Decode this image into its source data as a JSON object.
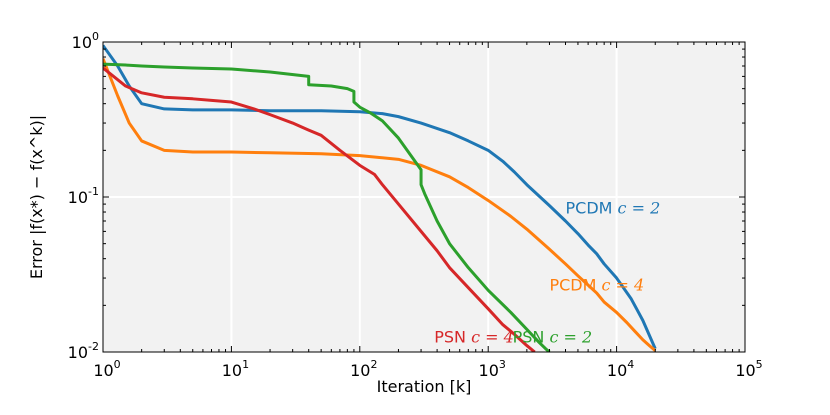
{
  "chart_data": {
    "type": "line",
    "title": "",
    "xlabel": "Iteration [k]",
    "ylabel": "Error |f(x*) − f(x^k)|",
    "xscale": "log",
    "yscale": "log",
    "xlim": [
      1,
      100000
    ],
    "ylim": [
      0.01,
      1
    ],
    "grid": true,
    "background": "#f2f2f2",
    "grid_color": "#ffffff",
    "x_ticks": [
      {
        "value": 1,
        "base": "10",
        "exp": "0"
      },
      {
        "value": 10,
        "base": "10",
        "exp": "1"
      },
      {
        "value": 100,
        "base": "10",
        "exp": "2"
      },
      {
        "value": 1000,
        "base": "10",
        "exp": "3"
      },
      {
        "value": 10000,
        "base": "10",
        "exp": "4"
      },
      {
        "value": 100000,
        "base": "10",
        "exp": "5"
      }
    ],
    "y_ticks": [
      {
        "value": 0.01,
        "base": "10",
        "exp": "-2"
      },
      {
        "value": 0.1,
        "base": "10",
        "exp": "-1"
      },
      {
        "value": 1,
        "base": "10",
        "exp": "0"
      }
    ],
    "series": [
      {
        "name": "PCDM",
        "param": "c = 2",
        "color": "#1f77b4",
        "label_anchor": {
          "x": 4000,
          "y": 0.078
        },
        "x": [
          1,
          1.3,
          1.6,
          2,
          3,
          5,
          10,
          20,
          50,
          100,
          150,
          200,
          300,
          500,
          700,
          1000,
          1300,
          1600,
          2000,
          3000,
          4000,
          5000,
          6000,
          7000,
          8000,
          10000,
          13000,
          16000,
          20000
        ],
        "y": [
          0.95,
          0.7,
          0.52,
          0.4,
          0.37,
          0.365,
          0.365,
          0.36,
          0.36,
          0.355,
          0.345,
          0.33,
          0.3,
          0.26,
          0.23,
          0.2,
          0.17,
          0.145,
          0.12,
          0.088,
          0.07,
          0.058,
          0.049,
          0.043,
          0.037,
          0.03,
          0.022,
          0.016,
          0.0105
        ]
      },
      {
        "name": "PCDM",
        "param": "c = 4",
        "color": "#ff7f0e",
        "label_anchor": {
          "x": 3000,
          "y": 0.025
        },
        "x": [
          1,
          1.3,
          1.6,
          2,
          3,
          5,
          10,
          20,
          50,
          100,
          200,
          300,
          500,
          700,
          1000,
          1500,
          2000,
          3000,
          4000,
          5000,
          6000,
          7000,
          8000,
          10000,
          12000,
          14000,
          16000,
          18000,
          20000
        ],
        "y": [
          0.78,
          0.45,
          0.3,
          0.23,
          0.2,
          0.195,
          0.195,
          0.193,
          0.19,
          0.185,
          0.175,
          0.16,
          0.135,
          0.115,
          0.095,
          0.075,
          0.062,
          0.046,
          0.037,
          0.031,
          0.027,
          0.024,
          0.021,
          0.018,
          0.0155,
          0.0135,
          0.012,
          0.011,
          0.0102
        ]
      },
      {
        "name": "PSN",
        "param": "c = 2",
        "color": "#2ca02c",
        "label_anchor": {
          "x": 1550,
          "y": 0.0115
        },
        "x": [
          1,
          1.5,
          2,
          3,
          5,
          10,
          20,
          40,
          40,
          60,
          80,
          90,
          90,
          100,
          120,
          150,
          200,
          300,
          300,
          320,
          400,
          500,
          700,
          1000,
          1500,
          2000,
          2500,
          2800,
          3000
        ],
        "y": [
          0.72,
          0.71,
          0.7,
          0.69,
          0.68,
          0.67,
          0.64,
          0.6,
          0.53,
          0.52,
          0.5,
          0.48,
          0.41,
          0.38,
          0.35,
          0.31,
          0.24,
          0.15,
          0.12,
          0.105,
          0.07,
          0.05,
          0.035,
          0.025,
          0.018,
          0.014,
          0.0115,
          0.0105,
          0.01
        ]
      },
      {
        "name": "PSN",
        "param": "c = 4",
        "color": "#d62728",
        "label_anchor": {
          "x": 380,
          "y": 0.0115
        },
        "x": [
          1,
          1.5,
          2,
          3,
          5,
          7,
          10,
          15,
          20,
          30,
          40,
          50,
          70,
          100,
          130,
          150,
          200,
          300,
          400,
          500,
          700,
          1000,
          1300,
          1600,
          2000,
          2300
        ],
        "y": [
          0.68,
          0.52,
          0.47,
          0.44,
          0.43,
          0.42,
          0.41,
          0.37,
          0.34,
          0.3,
          0.27,
          0.25,
          0.2,
          0.16,
          0.14,
          0.12,
          0.09,
          0.06,
          0.045,
          0.035,
          0.026,
          0.019,
          0.015,
          0.013,
          0.011,
          0.01
        ]
      }
    ]
  }
}
